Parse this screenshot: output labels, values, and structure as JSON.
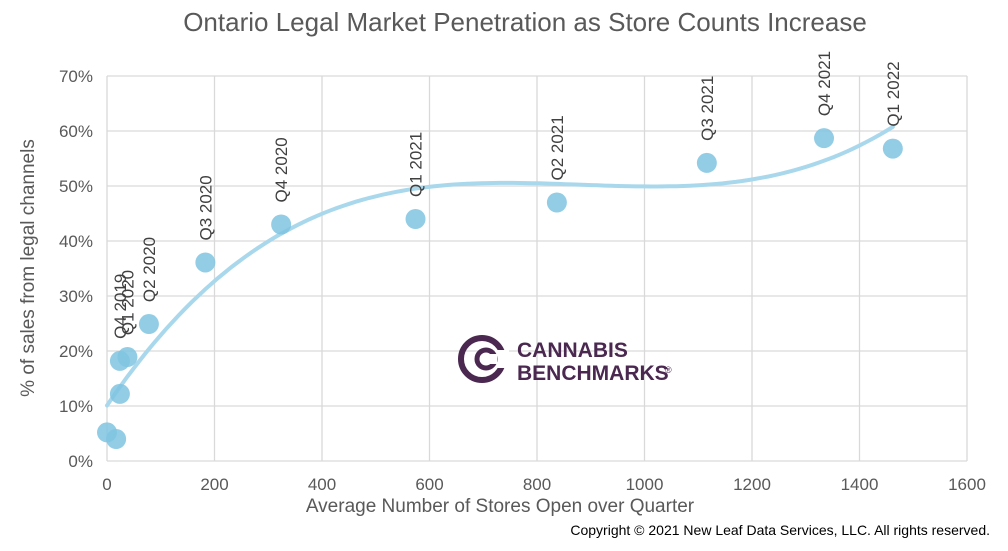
{
  "chart_data": {
    "type": "scatter",
    "title": "Ontario Legal Market Penetration as Store Counts Increase",
    "xlabel": "Average Number  of Stores Open over Quarter",
    "ylabel": "% of sales from legal channels",
    "xlim": [
      0,
      1600
    ],
    "ylim": [
      0,
      70
    ],
    "x_ticks": [
      0,
      200,
      400,
      600,
      800,
      1000,
      1200,
      1400,
      1600
    ],
    "y_ticks": [
      0,
      10,
      20,
      30,
      40,
      50,
      60,
      70
    ],
    "y_tick_labels": [
      "0%",
      "10%",
      "20%",
      "30%",
      "40%",
      "50%",
      "60%",
      "70%"
    ],
    "grid": true,
    "trendline": true,
    "series": [
      {
        "points": [
          {
            "x": 0,
            "y": 5.2,
            "label": ""
          },
          {
            "x": 17,
            "y": 4.0,
            "label": ""
          },
          {
            "x": 24,
            "y": 12.2,
            "label": ""
          },
          {
            "x": 24,
            "y": 18.2,
            "label": "Q4 2019"
          },
          {
            "x": 38,
            "y": 18.9,
            "label": "Q1 2020"
          },
          {
            "x": 78,
            "y": 24.9,
            "label": "Q2 2020"
          },
          {
            "x": 183,
            "y": 36.1,
            "label": "Q3 2020"
          },
          {
            "x": 324,
            "y": 43.0,
            "label": "Q4 2020"
          },
          {
            "x": 574,
            "y": 44.0,
            "label": "Q1 2021"
          },
          {
            "x": 837,
            "y": 47.0,
            "label": "Q2 2021"
          },
          {
            "x": 1116,
            "y": 54.2,
            "label": "Q3 2021"
          },
          {
            "x": 1334,
            "y": 58.7,
            "label": "Q4 2021"
          },
          {
            "x": 1462,
            "y": 56.8,
            "label": "Q1 2022"
          }
        ]
      }
    ]
  },
  "colors": {
    "point": "#7fc4e0",
    "trend": "#a9d8ec",
    "grid": "#d9d9d9",
    "text": "#595959",
    "logo": "#4a2850"
  },
  "logo": {
    "line1": "CANNABIS",
    "line2": "BENCHMARKS",
    "mark": "®"
  },
  "copyright": "Copyright © 2021 New Leaf Data Services, LLC. All rights reserved."
}
